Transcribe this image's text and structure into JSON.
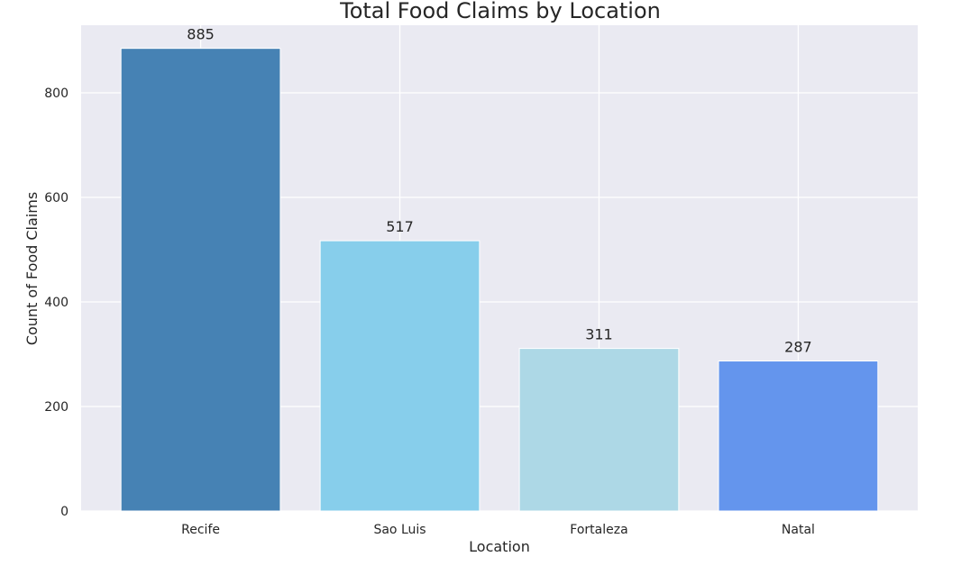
{
  "chart_data": {
    "type": "bar",
    "title": "Total Food Claims by Location",
    "xlabel": "Location",
    "ylabel": "Count of Food Claims",
    "categories": [
      "Recife",
      "Sao Luis",
      "Fortaleza",
      "Natal"
    ],
    "values": [
      885,
      517,
      311,
      287
    ],
    "data_labels": [
      "885",
      "517",
      "311",
      "287"
    ],
    "colors": [
      "#4682B4",
      "#87CEEB",
      "#ADD8E6",
      "#6495ED"
    ],
    "ylim": [
      0,
      929.25
    ],
    "yticks": [
      0,
      200,
      400,
      600,
      800
    ],
    "ytick_labels": [
      "0",
      "200",
      "400",
      "600",
      "800"
    ],
    "grid": true,
    "background_color": "#EAEAF2",
    "grid_color": "#FFFFFF"
  }
}
